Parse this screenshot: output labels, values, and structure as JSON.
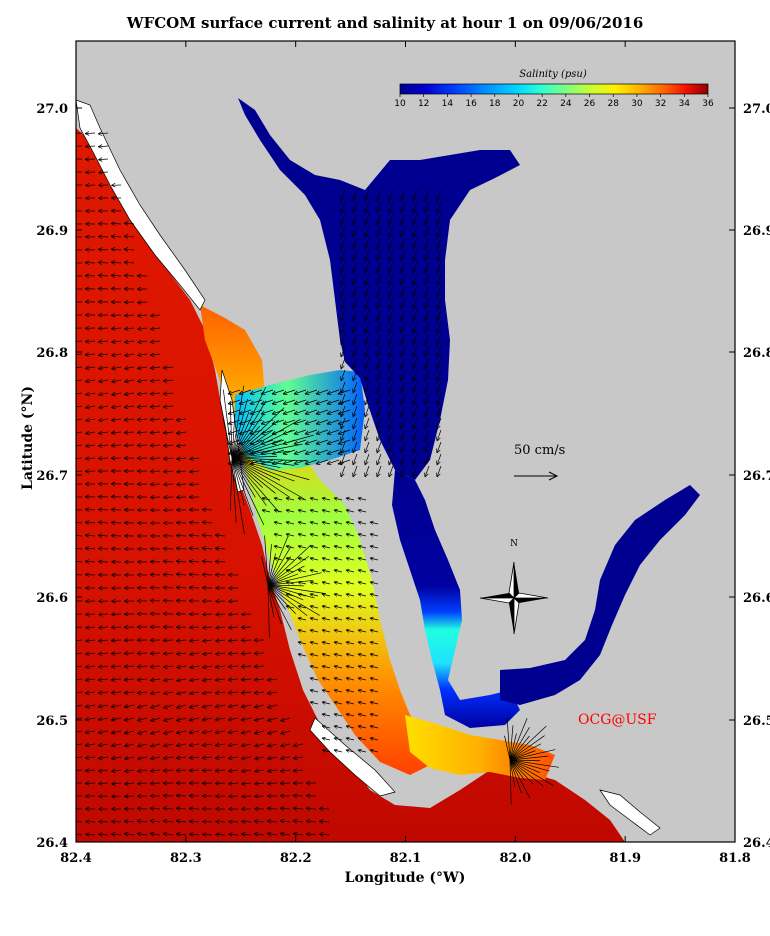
{
  "title": "WFCOM surface current and salinity at hour 1 on 09/06/2016",
  "xlabel": "Longitude (°W)",
  "ylabel": "Latitude (°N)",
  "x_ticks": [
    "82.4",
    "82.3",
    "82.2",
    "82.1",
    "82.0",
    "81.9",
    "81.8"
  ],
  "y_ticks": [
    "27.0",
    "26.9",
    "26.8",
    "26.7",
    "26.6",
    "26.5",
    "26.4"
  ],
  "colorbar": {
    "title": "Salinity (psu)",
    "ticks": [
      "10",
      "12",
      "14",
      "16",
      "18",
      "20",
      "22",
      "24",
      "26",
      "28",
      "30",
      "32",
      "34",
      "36"
    ],
    "colors": [
      "#00008f",
      "#0000d0",
      "#0040ff",
      "#0080ff",
      "#00c0ff",
      "#20ffe0",
      "#60ff9f",
      "#a0ff60",
      "#e0ff20",
      "#ffe000",
      "#ffa000",
      "#ff6000",
      "#ff2000",
      "#c00000",
      "#800000"
    ]
  },
  "scale_label": "50 cm/s",
  "compass_label": "N",
  "credit": "OCG@USF",
  "colors": {
    "land": "#c8c8c8",
    "gulf": "#d01000",
    "fresh": "#000090",
    "credit": "#ff0000"
  }
}
